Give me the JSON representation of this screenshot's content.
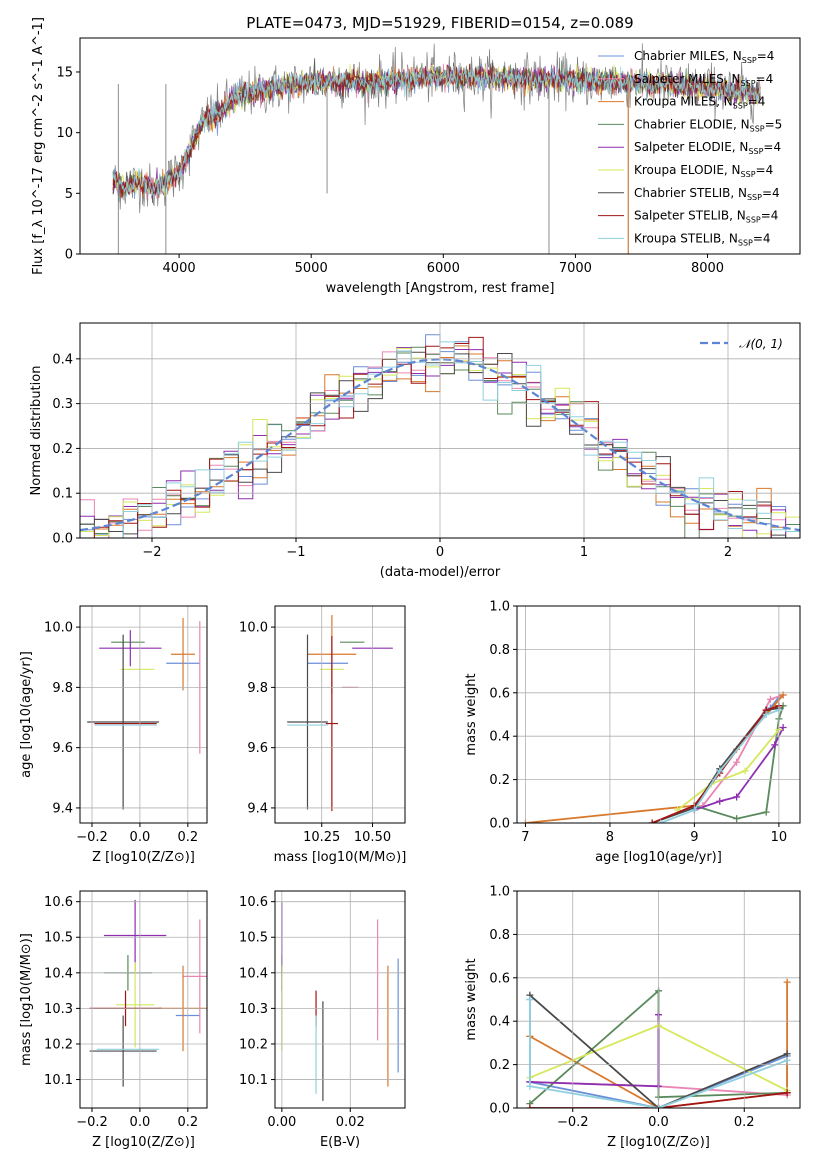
{
  "title": "PLATE=0473, MJD=51929, FIBERID=0154, z=0.089",
  "colors": {
    "Chabrier MILES": "#6a8fd8",
    "Salpeter MILES": "#ea86b3",
    "Kroupa MILES": "#d9782b",
    "Chabrier ELODIE": "#5a8a5c",
    "Salpeter ELODIE": "#8e2fb0",
    "Kroupa ELODIE": "#d6e85c",
    "Chabrier STELIB": "#4a4a4a",
    "Salpeter STELIB": "#a11515",
    "Kroupa STELIB": "#8fd0df",
    "data": "#808080",
    "normal": "#5b86d4"
  },
  "chart_data": [
    {
      "id": "spectrum",
      "type": "line",
      "title": "PLATE=0473, MJD=51929, FIBERID=0154, z=0.089",
      "xlabel": "wavelength [Angstrom, rest frame]",
      "ylabel": "Flux [f_λ 10^-17 erg cm^-2 s^-1 A^-1]",
      "xlim": [
        3250,
        8700
      ],
      "ylim": [
        0,
        17.8
      ],
      "xticks": [
        4000,
        5000,
        6000,
        7000,
        8000
      ],
      "yticks": [
        0,
        5,
        10,
        15
      ],
      "x_range": [
        3500,
        8400
      ],
      "continuum": {
        "x": [
          3500,
          3600,
          3700,
          3800,
          3900,
          4000,
          4100,
          4200,
          4300,
          4400,
          4600,
          4800,
          5000,
          5200,
          5400,
          5600,
          5800,
          6000,
          6200,
          6500,
          7000,
          7500,
          8000,
          8400
        ],
        "y": [
          6.0,
          5.5,
          6.0,
          5.3,
          6.0,
          6.7,
          9.0,
          11.2,
          11.6,
          12.8,
          13.4,
          13.8,
          14.2,
          14.2,
          14.1,
          14.3,
          14.5,
          14.6,
          14.6,
          14.5,
          14.3,
          14.1,
          13.7,
          13.2
        ]
      },
      "legend_loc": "upper right",
      "legend": [
        {
          "label": "Chabrier MILES",
          "nssp": "4",
          "color_key": "Chabrier MILES"
        },
        {
          "label": "Salpeter MILES",
          "nssp": "4",
          "color_key": "Salpeter MILES"
        },
        {
          "label": "Kroupa MILES",
          "nssp": "4",
          "color_key": "Kroupa MILES"
        },
        {
          "label": "Chabrier ELODIE",
          "nssp": "5",
          "color_key": "Chabrier ELODIE"
        },
        {
          "label": "Salpeter ELODIE",
          "nssp": "4",
          "color_key": "Salpeter ELODIE"
        },
        {
          "label": "Kroupa ELODIE",
          "nssp": "4",
          "color_key": "Kroupa ELODIE"
        },
        {
          "label": "Chabrier STELIB",
          "nssp": "4",
          "color_key": "Chabrier STELIB"
        },
        {
          "label": "Salpeter STELIB",
          "nssp": "4",
          "color_key": "Salpeter STELIB"
        },
        {
          "label": "Kroupa STELIB",
          "nssp": "4",
          "color_key": "Kroupa STELIB"
        }
      ]
    },
    {
      "id": "residuals",
      "type": "histogram",
      "xlabel": "(data-model)/error",
      "ylabel": "Normed distribution",
      "xlim": [
        -2.5,
        2.5
      ],
      "ylim": [
        0,
        0.48
      ],
      "xticks": [
        -2,
        -1,
        0,
        1,
        2
      ],
      "xticklabels": [
        "−2",
        "−1",
        "0",
        "1",
        "2"
      ],
      "yticks": [
        0.0,
        0.1,
        0.2,
        0.3,
        0.4
      ],
      "grid": true,
      "legend_label": "𝒩(0, 1)",
      "legend_loc": "upper right"
    },
    {
      "id": "age_vs_Z",
      "type": "scatter",
      "xlabel": "Z [log10(Z/Z⊙)]",
      "ylabel": "age  [log10(age/yr)]",
      "xlim": [
        -0.25,
        0.28
      ],
      "ylim": [
        9.35,
        10.07
      ],
      "xticks": [
        -0.2,
        0.0,
        0.2
      ],
      "xticklabels": [
        "−0.2",
        "0.0",
        "0.2"
      ],
      "yticks": [
        9.4,
        9.6,
        9.8,
        10.0
      ],
      "grid": true,
      "points": [
        {
          "model": "Chabrier MILES",
          "x": 0.18,
          "y": 9.88,
          "xerr": 0.07,
          "yerr": 0.0
        },
        {
          "model": "Salpeter MILES",
          "x": 0.25,
          "y": 9.8,
          "xerr": 0.0,
          "yerr": 0.22
        },
        {
          "model": "Kroupa MILES",
          "x": 0.18,
          "y": 9.91,
          "xerr": 0.05,
          "yerr": 0.12
        },
        {
          "model": "Chabrier ELODIE",
          "x": -0.05,
          "y": 9.95,
          "xerr": 0.07,
          "yerr": 0.0
        },
        {
          "model": "Salpeter ELODIE",
          "x": -0.04,
          "y": 9.93,
          "xerr": 0.13,
          "yerr": 0.06
        },
        {
          "model": "Kroupa ELODIE",
          "x": -0.01,
          "y": 9.86,
          "xerr": 0.07,
          "yerr": 0.0
        },
        {
          "model": "Chabrier STELIB",
          "x": -0.07,
          "y": 9.685,
          "xerr": 0.15,
          "yerr": 0.29
        },
        {
          "model": "Salpeter STELIB",
          "x": -0.06,
          "y": 9.68,
          "xerr": 0.13,
          "yerr": 0.0
        },
        {
          "model": "Kroupa STELIB",
          "x": -0.06,
          "y": 9.675,
          "xerr": 0.13,
          "yerr": 0.0
        }
      ]
    },
    {
      "id": "age_vs_mass",
      "type": "scatter",
      "xlabel": "mass [log10(M/M⊙)]",
      "ylabel": "",
      "xlim": [
        10.02,
        10.66
      ],
      "ylim": [
        9.35,
        10.07
      ],
      "xticks": [
        10.25,
        10.5
      ],
      "xticklabels": [
        "10.25",
        "10.50"
      ],
      "yticks": [
        9.4,
        9.6,
        9.8,
        10.0
      ],
      "grid": true,
      "points": [
        {
          "model": "Chabrier MILES",
          "x": 10.28,
          "y": 9.88,
          "xerr": 0.1,
          "yerr": 0.0
        },
        {
          "model": "Salpeter MILES",
          "x": 10.39,
          "y": 9.8,
          "xerr": 0.04,
          "yerr": 0.0
        },
        {
          "model": "Kroupa MILES",
          "x": 10.3,
          "y": 9.91,
          "xerr": 0.12,
          "yerr": 0.13
        },
        {
          "model": "Chabrier ELODIE",
          "x": 10.4,
          "y": 9.95,
          "xerr": 0.06,
          "yerr": 0.0
        },
        {
          "model": "Salpeter ELODIE",
          "x": 10.5,
          "y": 9.93,
          "xerr": 0.1,
          "yerr": 0.0
        },
        {
          "model": "Kroupa ELODIE",
          "x": 10.3,
          "y": 9.86,
          "xerr": 0.06,
          "yerr": 0.0
        },
        {
          "model": "Chabrier STELIB",
          "x": 10.18,
          "y": 9.685,
          "xerr": 0.1,
          "yerr": 0.29
        },
        {
          "model": "Salpeter STELIB",
          "x": 10.3,
          "y": 9.68,
          "xerr": 0.03,
          "yerr": 0.29
        },
        {
          "model": "Kroupa STELIB",
          "x": 10.18,
          "y": 9.675,
          "xerr": 0.1,
          "yerr": 0.0
        }
      ]
    },
    {
      "id": "massweight_vs_age",
      "type": "line",
      "xlabel": "age  [log10(age/yr)]",
      "ylabel": "mass weight",
      "xlim": [
        6.9,
        10.25
      ],
      "ylim": [
        0,
        1.0
      ],
      "xticks": [
        7,
        8,
        9,
        10
      ],
      "yticks": [
        0.0,
        0.2,
        0.4,
        0.6,
        0.8,
        1.0
      ],
      "grid": true,
      "series": [
        {
          "model": "Chabrier MILES",
          "x": [
            9.0,
            9.3,
            9.9,
            10.0
          ],
          "y": [
            0.06,
            0.24,
            0.53,
            0.58
          ]
        },
        {
          "model": "Salpeter MILES",
          "x": [
            9.1,
            9.5,
            9.9,
            10.05
          ],
          "y": [
            0.08,
            0.28,
            0.57,
            0.59
          ]
        },
        {
          "model": "Kroupa MILES",
          "x": [
            7.0,
            9.0,
            9.5,
            10.05
          ],
          "y": [
            0.0,
            0.08,
            0.34,
            0.59
          ]
        },
        {
          "model": "Chabrier ELODIE",
          "x": [
            9.0,
            9.5,
            9.85,
            10.0,
            10.05
          ],
          "y": [
            0.08,
            0.02,
            0.05,
            0.48,
            0.54
          ]
        },
        {
          "model": "Salpeter ELODIE",
          "x": [
            9.0,
            9.3,
            9.5,
            9.95,
            10.05
          ],
          "y": [
            0.06,
            0.1,
            0.12,
            0.36,
            0.44
          ]
        },
        {
          "model": "Kroupa ELODIE",
          "x": [
            8.8,
            9.2,
            9.6,
            10.0
          ],
          "y": [
            0.06,
            0.18,
            0.24,
            0.43
          ]
        },
        {
          "model": "Chabrier STELIB",
          "x": [
            8.5,
            9.0,
            9.3,
            9.85,
            10.0
          ],
          "y": [
            0.0,
            0.07,
            0.25,
            0.52,
            0.53
          ]
        },
        {
          "model": "Salpeter STELIB",
          "x": [
            8.5,
            9.0,
            9.3,
            9.85,
            10.0
          ],
          "y": [
            0.0,
            0.08,
            0.23,
            0.52,
            0.54
          ]
        },
        {
          "model": "Kroupa STELIB",
          "x": [
            8.6,
            9.0,
            9.3,
            9.85,
            10.0
          ],
          "y": [
            0.0,
            0.06,
            0.24,
            0.5,
            0.52
          ]
        }
      ]
    },
    {
      "id": "mass_vs_Z",
      "type": "scatter",
      "xlabel": "Z [log10(Z/Z⊙)]",
      "ylabel": "mass [log10(M/M⊙)]",
      "xlim": [
        -0.25,
        0.28
      ],
      "ylim": [
        10.02,
        10.63
      ],
      "xticks": [
        -0.2,
        0.0,
        0.2
      ],
      "xticklabels": [
        "−0.2",
        "0.0",
        "0.2"
      ],
      "yticks": [
        10.1,
        10.2,
        10.3,
        10.4,
        10.5,
        10.6
      ],
      "grid": true,
      "points": [
        {
          "model": "Chabrier MILES",
          "x": 0.2,
          "y": 10.28,
          "xerr": 0.05,
          "yerr": 0.0
        },
        {
          "model": "Salpeter MILES",
          "x": 0.25,
          "y": 10.39,
          "xerr": 0.07,
          "yerr": 0.16
        },
        {
          "model": "Kroupa MILES",
          "x": 0.18,
          "y": 10.3,
          "xerr": 0.1,
          "yerr": 0.12
        },
        {
          "model": "Chabrier ELODIE",
          "x": -0.05,
          "y": 10.4,
          "xerr": 0.1,
          "yerr": 0.05
        },
        {
          "model": "Salpeter ELODIE",
          "x": -0.02,
          "y": 10.505,
          "xerr": 0.13,
          "yerr": 0.1
        },
        {
          "model": "Kroupa ELODIE",
          "x": -0.02,
          "y": 10.31,
          "xerr": 0.08,
          "yerr": 0.12
        },
        {
          "model": "Chabrier STELIB",
          "x": -0.07,
          "y": 10.18,
          "xerr": 0.14,
          "yerr": 0.1
        },
        {
          "model": "Salpeter STELIB",
          "x": -0.06,
          "y": 10.3,
          "xerr": 0.15,
          "yerr": 0.05
        },
        {
          "model": "Kroupa STELIB",
          "x": -0.05,
          "y": 10.185,
          "xerr": 0.13,
          "yerr": 0.0
        }
      ]
    },
    {
      "id": "mass_vs_ebv",
      "type": "scatter",
      "xlabel": "E(B-V)",
      "ylabel": "",
      "xlim": [
        -0.002,
        0.036
      ],
      "ylim": [
        10.02,
        10.63
      ],
      "xticks": [
        0.0,
        0.02
      ],
      "xticklabels": [
        "0.00",
        "0.02"
      ],
      "yticks": [
        10.1,
        10.2,
        10.3,
        10.4,
        10.5,
        10.6
      ],
      "grid": true,
      "points": [
        {
          "model": "Chabrier MILES",
          "x": 0.034,
          "y": 10.28,
          "xerr": 0.0,
          "yerr": 0.16
        },
        {
          "model": "Salpeter MILES",
          "x": 0.028,
          "y": 10.38,
          "xerr": 0.0,
          "yerr": 0.17
        },
        {
          "model": "Kroupa MILES",
          "x": 0.031,
          "y": 10.25,
          "xerr": 0.0,
          "yerr": 0.17
        },
        {
          "model": "Chabrier ELODIE",
          "x": 0.0,
          "y": 10.4,
          "xerr": 0.0,
          "yerr": 0.05
        },
        {
          "model": "Salpeter ELODIE",
          "x": 0.0,
          "y": 10.5,
          "xerr": 0.0,
          "yerr": 0.1
        },
        {
          "model": "Kroupa ELODIE",
          "x": 0.0,
          "y": 10.3,
          "xerr": 0.0,
          "yerr": 0.12
        },
        {
          "model": "Chabrier STELIB",
          "x": 0.012,
          "y": 10.18,
          "xerr": 0.0,
          "yerr": 0.14
        },
        {
          "model": "Salpeter STELIB",
          "x": 0.01,
          "y": 10.3,
          "xerr": 0.0,
          "yerr": 0.05
        },
        {
          "model": "Kroupa STELIB",
          "x": 0.01,
          "y": 10.17,
          "xerr": 0.0,
          "yerr": 0.11
        }
      ]
    },
    {
      "id": "massweight_vs_Z",
      "type": "line",
      "xlabel": "Z [log10(Z/Z⊙)]",
      "ylabel": "mass weight",
      "xlim": [
        -0.33,
        0.33
      ],
      "ylim": [
        0,
        1.0
      ],
      "xticks": [
        -0.2,
        0.0,
        0.2
      ],
      "xticklabels": [
        "−0.2",
        "0.0",
        "0.2"
      ],
      "yticks": [
        0.0,
        0.2,
        0.4,
        0.6,
        0.8,
        1.0
      ],
      "grid": true,
      "series": [
        {
          "model": "Chabrier MILES",
          "x": [
            -0.3,
            -0.3,
            0.0,
            0.3,
            0.3
          ],
          "y": [
            0.5,
            0.12,
            0.0,
            0.24,
            0.07
          ]
        },
        {
          "model": "Salpeter MILES",
          "x": [
            -0.3,
            0.0,
            0.3,
            0.3
          ],
          "y": [
            0.12,
            0.1,
            0.06,
            0.07
          ]
        },
        {
          "model": "Kroupa MILES",
          "x": [
            -0.3,
            -0.3,
            0.0,
            0.3,
            0.3
          ],
          "y": [
            0.33,
            0.33,
            0.0,
            0.07,
            0.58
          ]
        },
        {
          "model": "Chabrier ELODIE",
          "x": [
            -0.3,
            0.0,
            0.0,
            0.3
          ],
          "y": [
            0.02,
            0.54,
            0.05,
            0.07
          ]
        },
        {
          "model": "Salpeter ELODIE",
          "x": [
            -0.3,
            0.0,
            0.0
          ],
          "y": [
            0.12,
            0.1,
            0.43
          ]
        },
        {
          "model": "Kroupa ELODIE",
          "x": [
            -0.3,
            0.0,
            0.3
          ],
          "y": [
            0.14,
            0.38,
            0.08
          ]
        },
        {
          "model": "Chabrier STELIB",
          "x": [
            -0.3,
            0.0,
            0.3
          ],
          "y": [
            0.52,
            0.0,
            0.25
          ]
        },
        {
          "model": "Salpeter STELIB",
          "x": [
            -0.3,
            0.0,
            0.3
          ],
          "y": [
            0.0,
            0.0,
            0.07
          ]
        },
        {
          "model": "Kroupa STELIB",
          "x": [
            -0.3,
            -0.3,
            0.0,
            0.3
          ],
          "y": [
            0.5,
            0.1,
            0.0,
            0.22
          ]
        }
      ]
    }
  ]
}
